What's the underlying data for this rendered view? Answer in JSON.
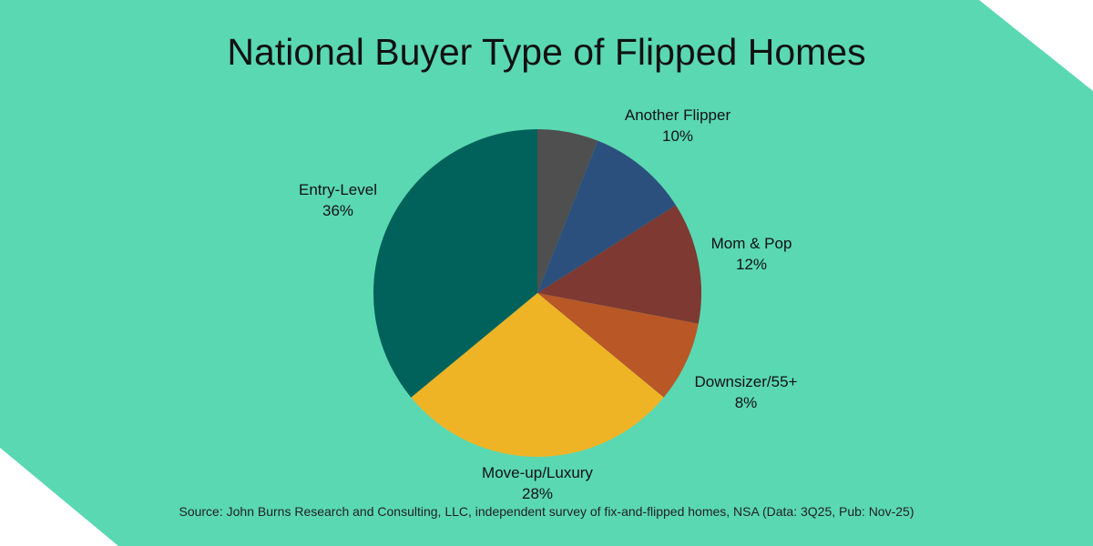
{
  "chart_data": {
    "type": "pie",
    "title": "National Buyer Type of Flipped Homes",
    "start_angle_deg": 0,
    "direction": "clockwise",
    "slices": [
      {
        "label": "",
        "value": 6,
        "value_label": "",
        "color": "#4f4f4f"
      },
      {
        "label": "Another Flipper",
        "value": 10,
        "value_label": "10%",
        "color": "#2c507d"
      },
      {
        "label": "Mom & Pop",
        "value": 12,
        "value_label": "12%",
        "color": "#7d3932"
      },
      {
        "label": "Downsizer/55+",
        "value": 8,
        "value_label": "8%",
        "color": "#b95726"
      },
      {
        "label": "Move-up/Luxury",
        "value": 28,
        "value_label": "28%",
        "color": "#efb426"
      },
      {
        "label": "Entry-Level",
        "value": 36,
        "value_label": "36%",
        "color": "#00625a"
      }
    ]
  },
  "source": "Source: John Burns Research and Consulting, LLC, independent survey of fix-and-flipped homes, NSA (Data: 3Q25, Pub: Nov-25)",
  "colors": {
    "background": "#5ad8b2",
    "corner": "#ffffff"
  }
}
